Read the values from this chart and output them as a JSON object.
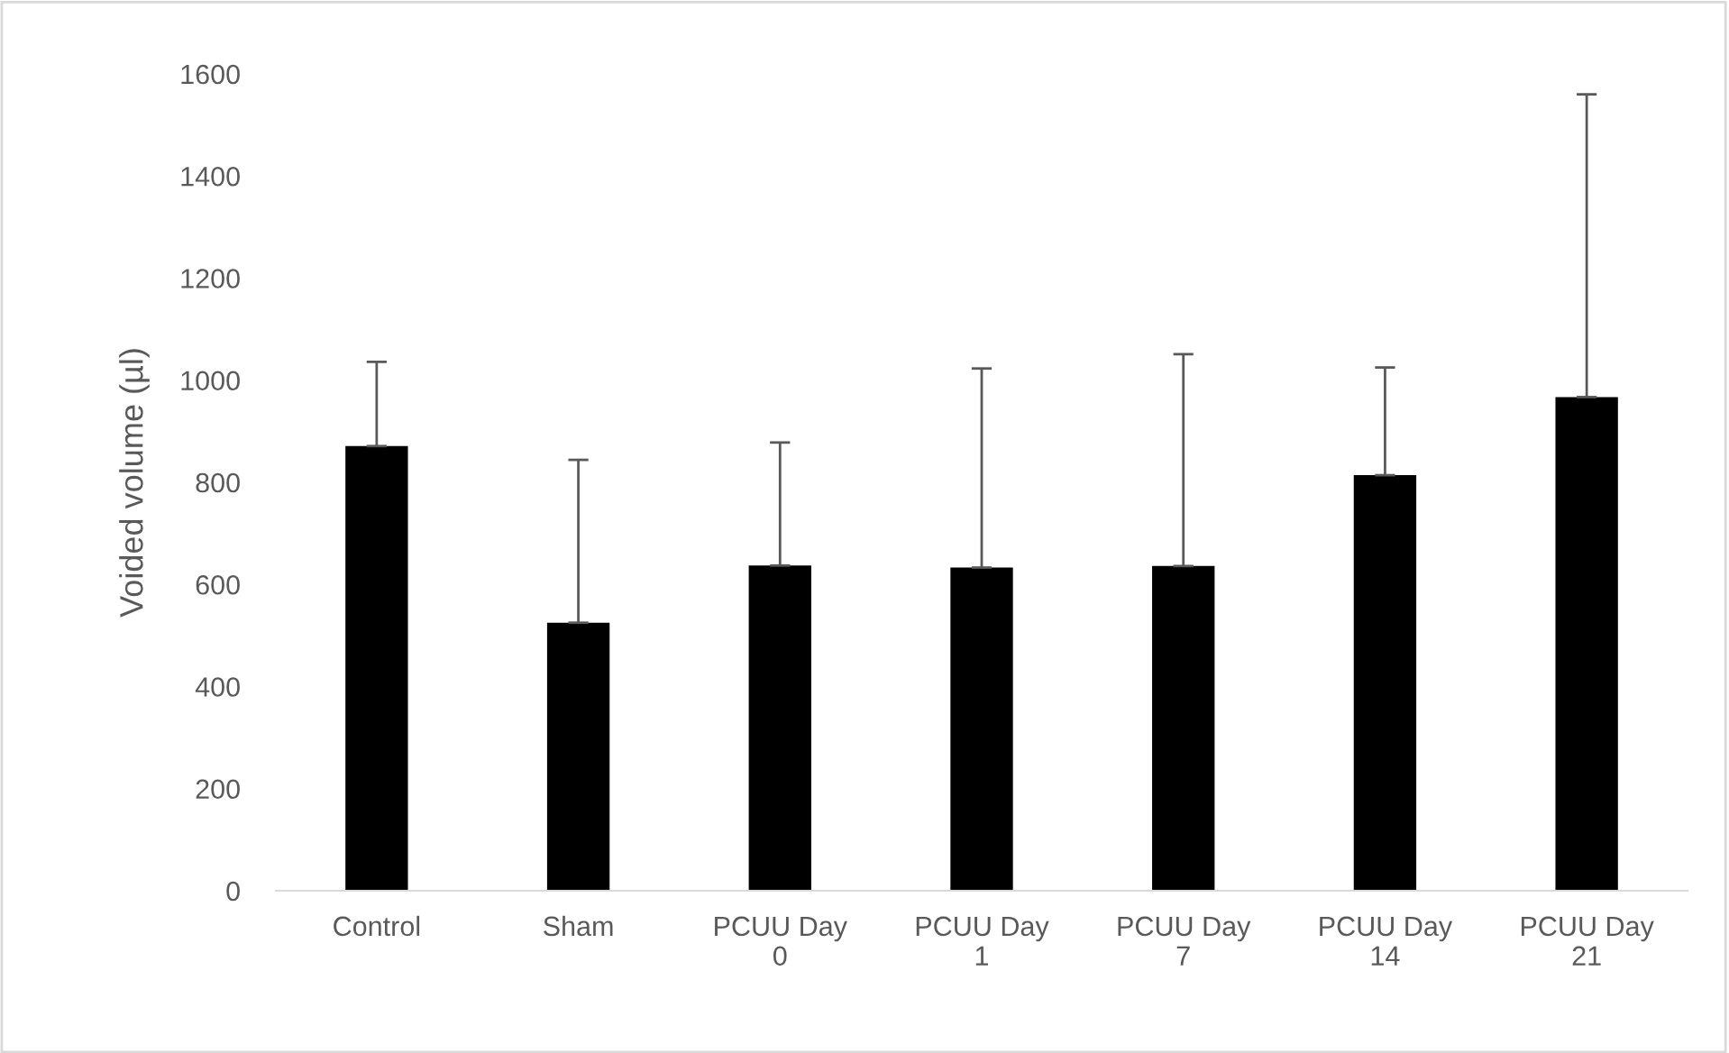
{
  "chart_data": {
    "type": "bar",
    "ylabel": "Voided volume (µl)",
    "categories": [
      "Control",
      "Sham",
      "PCUU Day 0",
      "PCUU Day 1",
      "PCUU Day 7",
      "PCUU Day 14",
      "PCUU Day 21"
    ],
    "values": [
      871,
      525,
      637,
      633,
      636,
      814,
      967
    ],
    "errors": [
      [
        871,
        1036
      ],
      [
        525,
        844
      ],
      [
        637,
        878
      ],
      [
        633,
        1023
      ],
      [
        636,
        1051
      ],
      [
        814,
        1025
      ],
      [
        967,
        1560
      ]
    ],
    "color": "#000000",
    "ylim": [
      0,
      1600
    ],
    "yticks": [
      0,
      200,
      400,
      600,
      800,
      1000,
      1200,
      1400,
      1600
    ],
    "grid": false
  }
}
